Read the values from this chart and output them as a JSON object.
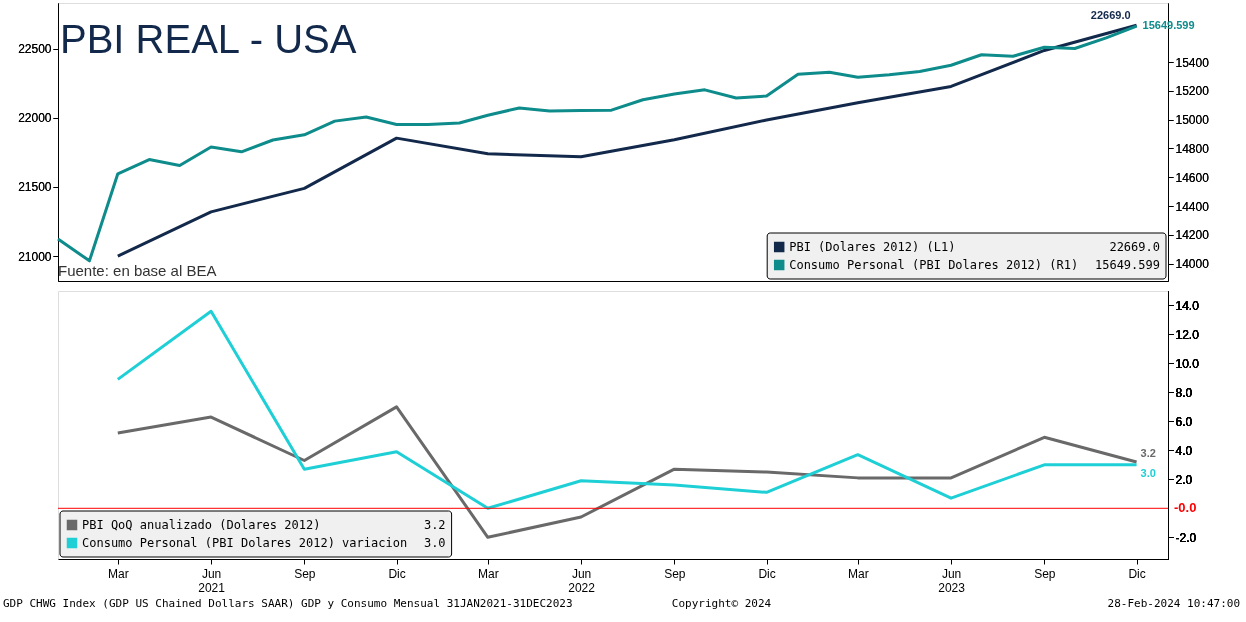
{
  "chart_data": [
    {
      "type": "line",
      "title": "PBI REAL - USA",
      "xlim": [
        "2021-01",
        "2024-01"
      ],
      "ylim": [
        20820,
        22830
      ],
      "yticks": [
        21000,
        21500,
        22000,
        22500
      ],
      "y2lim": [
        13880,
        15810
      ],
      "y2ticks": [
        14000,
        14200,
        14400,
        14600,
        14800,
        15000,
        15200,
        15400
      ],
      "tick_labels": "y",
      "legend": "bottom right",
      "grid": false,
      "marker": "none",
      "line_style": "solid",
      "annotations": [
        "Fuente: en base al BEA"
      ],
      "series": [
        {
          "name": "PBI (Dolares 2012) (L1)",
          "color": "#13294b",
          "x": [
            "2021-03",
            "2021-06",
            "2021-09",
            "2021-12",
            "2022-03",
            "2022-06",
            "2022-09",
            "2022-12",
            "2023-03",
            "2023-06",
            "2023-09",
            "2023-12"
          ],
          "values": [
            21000,
            21320,
            21490,
            21853,
            21740,
            21718,
            21841,
            21984,
            22109,
            22227,
            22487,
            22669.0
          ],
          "value_labels": [
            null,
            null,
            null,
            null,
            null,
            null,
            null,
            null,
            null,
            null,
            null,
            "22669.0"
          ]
        },
        {
          "name": "Consumo Personal (PBI Dolares 2012) (R1)",
          "color": "#0e8b8b",
          "axis": "y2",
          "x": [
            "2021-01",
            "2021-02",
            "2021-03",
            "2021-04",
            "2021-05",
            "2021-06",
            "2021-07",
            "2021-08",
            "2021-09",
            "2021-10",
            "2021-11",
            "2021-12",
            "2022-01",
            "2022-02",
            "2022-03",
            "2022-04",
            "2022-05",
            "2022-06",
            "2022-07",
            "2022-08",
            "2022-09",
            "2022-10",
            "2022-11",
            "2022-12",
            "2023-01",
            "2023-02",
            "2023-03",
            "2023-04",
            "2023-05",
            "2023-06",
            "2023-07",
            "2023-08",
            "2023-09",
            "2023-10",
            "2023-11",
            "2023-12"
          ],
          "values": [
            14171,
            14020,
            14624,
            14723,
            14682,
            14810,
            14777,
            14859,
            14895,
            14990,
            15018,
            14966,
            14966,
            14977,
            15031,
            15081,
            15061,
            15063,
            15066,
            15138,
            15178,
            15207,
            15150,
            15164,
            15315,
            15329,
            15295,
            15312,
            15335,
            15378,
            15451,
            15440,
            15503,
            15494,
            15568,
            15649.599
          ],
          "value_labels": [
            null,
            null,
            null,
            null,
            null,
            null,
            null,
            null,
            null,
            null,
            null,
            null,
            null,
            null,
            null,
            null,
            null,
            null,
            null,
            null,
            null,
            null,
            null,
            null,
            null,
            null,
            null,
            null,
            null,
            null,
            null,
            null,
            null,
            null,
            null,
            "15649.599"
          ]
        }
      ]
    },
    {
      "type": "line",
      "xlim": [
        "2021-01",
        "2024-01"
      ],
      "y2lim": [
        -3.5,
        15
      ],
      "y2ticks": [
        {
          "value": -2,
          "label": "-2.0"
        },
        {
          "value": 2,
          "label": "2.0"
        },
        {
          "value": 4,
          "label": "4.0"
        },
        {
          "value": 6,
          "label": "6.0"
        },
        {
          "value": 8,
          "label": "8.0"
        },
        {
          "value": 10,
          "label": "10.0"
        },
        {
          "value": 12,
          "label": "12.0"
        },
        {
          "value": 14,
          "label": "14.0"
        }
      ],
      "xticks": [
        {
          "value": "2021-03",
          "label": "Mar"
        },
        {
          "value": "2021-06",
          "label": "Jun\n2021"
        },
        {
          "value": "2021-09",
          "label": "Sep"
        },
        {
          "value": "2021-12",
          "label": "Dic"
        },
        {
          "value": "2022-03",
          "label": "Mar"
        },
        {
          "value": "2022-06",
          "label": "Jun\n2022"
        },
        {
          "value": "2022-09",
          "label": "Sep"
        },
        {
          "value": "2022-12",
          "label": "Dic"
        },
        {
          "value": "2023-03",
          "label": "Mar"
        },
        {
          "value": "2023-06",
          "label": "Jun\n2023"
        },
        {
          "value": "2023-09",
          "label": "Sep"
        },
        {
          "value": "2023-12",
          "label": "Dic"
        }
      ],
      "legend": "bottom left",
      "grid": false,
      "marker": "none",
      "line_style": "solid",
      "ref_lines": [
        {
          "axis": "y2",
          "value": 0,
          "label": "-0.0",
          "color": "#ff0000"
        }
      ],
      "annotations": [
        "GDP CHWG Index (GDP US Chained Dollars SAAR) GDP y Consumo  Mensual 31JAN2021-31DEC2023",
        "Copyright© 2024",
        "28-Feb-2024 10:47:00"
      ],
      "series": [
        {
          "name": "PBI QoQ anualizado (Dolares 2012)",
          "color": "#696969",
          "axis": "y2",
          "x": [
            "2021-03",
            "2021-06",
            "2021-09",
            "2021-12",
            "2022-03",
            "2022-06",
            "2022-09",
            "2022-12",
            "2023-03",
            "2023-06",
            "2023-09",
            "2023-12"
          ],
          "values": [
            5.2,
            6.3,
            3.3,
            7.0,
            -2.0,
            -0.6,
            2.7,
            2.5,
            2.1,
            2.1,
            4.9,
            3.2
          ],
          "value_labels": [
            null,
            null,
            null,
            null,
            null,
            null,
            null,
            null,
            null,
            null,
            null,
            "3.2"
          ]
        },
        {
          "name": "Consumo Personal (PBI Dolares 2012) variacion",
          "color": "#1ecfd6",
          "axis": "y2",
          "x": [
            "2021-03",
            "2021-06",
            "2021-09",
            "2021-12",
            "2022-03",
            "2022-06",
            "2022-09",
            "2022-12",
            "2023-03",
            "2023-06",
            "2023-09",
            "2023-12"
          ],
          "values": [
            8.9,
            13.6,
            2.7,
            3.9,
            0.0,
            1.9,
            1.6,
            1.1,
            3.7,
            0.7,
            3.0,
            3.0
          ],
          "value_labels": [
            null,
            null,
            null,
            null,
            null,
            null,
            null,
            null,
            null,
            null,
            null,
            "3.0"
          ]
        }
      ]
    }
  ]
}
